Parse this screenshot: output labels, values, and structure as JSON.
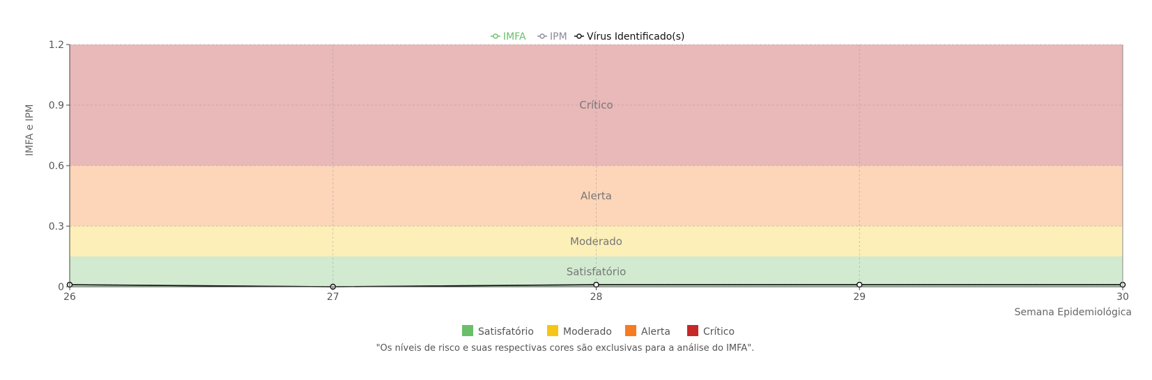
{
  "chart_data": {
    "type": "line",
    "xlabel": "Semana Epidemiológica",
    "ylabel": "IMFA e IPM",
    "x": [
      26,
      27,
      28,
      29,
      30
    ],
    "xlim": [
      26,
      30
    ],
    "ylim": [
      0,
      1.2
    ],
    "y_ticks": [
      "0",
      "0.3",
      "0.6",
      "0.9",
      "1.2"
    ],
    "grid": true,
    "legend_position": "top-center",
    "series": [
      {
        "name": "IMFA",
        "color": "#6abf69",
        "values": [
          0.01,
          0.0,
          0.01,
          0.01,
          0.01
        ]
      },
      {
        "name": "IPM",
        "color": "#8a8a9a",
        "values": [
          0.01,
          0.0,
          0.01,
          0.01,
          0.01
        ]
      },
      {
        "name": "Vírus Identificado(s)",
        "color": "#111111",
        "values": [
          0.01,
          0.0,
          0.01,
          0.01,
          0.01
        ]
      }
    ],
    "bands": [
      {
        "label": "Satisfatório",
        "from": 0,
        "to": 0.15,
        "color": "#d1ead0"
      },
      {
        "label": "Moderado",
        "from": 0.15,
        "to": 0.3,
        "color": "#fcefb8"
      },
      {
        "label": "Alerta",
        "from": 0.3,
        "to": 0.6,
        "color": "#fdd5b8"
      },
      {
        "label": "Crítico",
        "from": 0.6,
        "to": 1.2,
        "color": "#e9b8b8"
      }
    ],
    "risk_legend": [
      {
        "label": "Satisfatório",
        "color": "#6abf69"
      },
      {
        "label": "Moderado",
        "color": "#f5c518"
      },
      {
        "label": "Alerta",
        "color": "#f57c20"
      },
      {
        "label": "Crítico",
        "color": "#c62828"
      }
    ],
    "note": "\"Os níveis de risco e suas respectivas cores são exclusivas para a análise do IMFA\"."
  }
}
